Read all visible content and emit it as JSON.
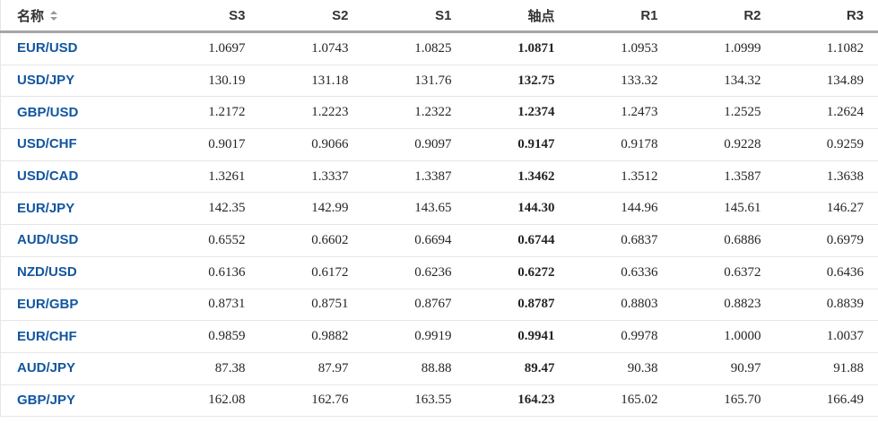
{
  "table": {
    "columns": [
      {
        "label": "名称",
        "sortable": true
      },
      {
        "label": "S3"
      },
      {
        "label": "S2"
      },
      {
        "label": "S1"
      },
      {
        "label": "轴点",
        "bold": true
      },
      {
        "label": "R1"
      },
      {
        "label": "R2"
      },
      {
        "label": "R3"
      }
    ],
    "rows": [
      {
        "pair": "EUR/USD",
        "values": [
          "1.0697",
          "1.0743",
          "1.0825",
          "1.0871",
          "1.0953",
          "1.0999",
          "1.1082"
        ]
      },
      {
        "pair": "USD/JPY",
        "values": [
          "130.19",
          "131.18",
          "131.76",
          "132.75",
          "133.32",
          "134.32",
          "134.89"
        ]
      },
      {
        "pair": "GBP/USD",
        "values": [
          "1.2172",
          "1.2223",
          "1.2322",
          "1.2374",
          "1.2473",
          "1.2525",
          "1.2624"
        ]
      },
      {
        "pair": "USD/CHF",
        "values": [
          "0.9017",
          "0.9066",
          "0.9097",
          "0.9147",
          "0.9178",
          "0.9228",
          "0.9259"
        ]
      },
      {
        "pair": "USD/CAD",
        "values": [
          "1.3261",
          "1.3337",
          "1.3387",
          "1.3462",
          "1.3512",
          "1.3587",
          "1.3638"
        ]
      },
      {
        "pair": "EUR/JPY",
        "values": [
          "142.35",
          "142.99",
          "143.65",
          "144.30",
          "144.96",
          "145.61",
          "146.27"
        ]
      },
      {
        "pair": "AUD/USD",
        "values": [
          "0.6552",
          "0.6602",
          "0.6694",
          "0.6744",
          "0.6837",
          "0.6886",
          "0.6979"
        ]
      },
      {
        "pair": "NZD/USD",
        "values": [
          "0.6136",
          "0.6172",
          "0.6236",
          "0.6272",
          "0.6336",
          "0.6372",
          "0.6436"
        ]
      },
      {
        "pair": "EUR/GBP",
        "values": [
          "0.8731",
          "0.8751",
          "0.8767",
          "0.8787",
          "0.8803",
          "0.8823",
          "0.8839"
        ]
      },
      {
        "pair": "EUR/CHF",
        "values": [
          "0.9859",
          "0.9882",
          "0.9919",
          "0.9941",
          "0.9978",
          "1.0000",
          "1.0037"
        ]
      },
      {
        "pair": "AUD/JPY",
        "values": [
          "87.38",
          "87.97",
          "88.88",
          "89.47",
          "90.38",
          "90.97",
          "91.88"
        ]
      },
      {
        "pair": "GBP/JPY",
        "values": [
          "162.08",
          "162.76",
          "163.55",
          "164.23",
          "165.02",
          "165.70",
          "166.49"
        ]
      }
    ],
    "pivot_column_index": 3
  },
  "colors": {
    "link_blue": "#1256a0",
    "header_text": "#333333",
    "value_text": "#232526",
    "row_border": "#e6e6e6",
    "header_border": "#a6a6a6",
    "sort_icon": "#999999"
  },
  "icons": {
    "sort": "sort-updown-icon"
  }
}
